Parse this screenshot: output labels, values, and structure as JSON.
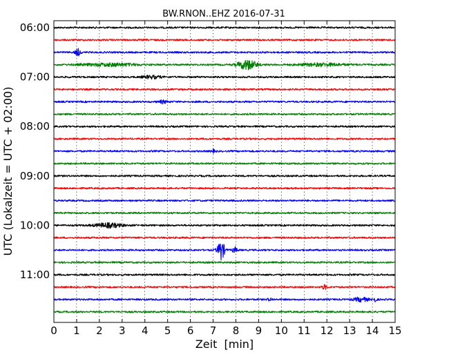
{
  "chart_data": {
    "type": "line",
    "title": "BW.RNON..EHZ 2016-07-31",
    "xlabel": "Zeit  [min]",
    "ylabel": "UTC (Lokalzeit = UTC + 02:00)",
    "xlim": [
      0,
      15
    ],
    "x_ticks": [
      "0",
      "1",
      "2",
      "3",
      "4",
      "5",
      "6",
      "7",
      "8",
      "9",
      "10",
      "11",
      "12",
      "13",
      "14",
      "15"
    ],
    "y_tick_labels": [
      "06:00",
      "07:00",
      "08:00",
      "09:00",
      "10:00",
      "11:00"
    ],
    "grid": true,
    "trace_colors": [
      "#000000",
      "#ff0000",
      "#0000ff",
      "#008000"
    ],
    "trace_start_times": [
      "06:00",
      "06:15",
      "06:30",
      "06:45",
      "07:00",
      "07:15",
      "07:30",
      "07:45",
      "08:00",
      "08:15",
      "08:30",
      "08:45",
      "09:00",
      "09:15",
      "09:30",
      "09:45",
      "10:00",
      "10:15",
      "10:30",
      "10:45",
      "11:00",
      "11:15",
      "11:30",
      "11:45"
    ],
    "events": [
      {
        "trace": 2,
        "minute": 1.05,
        "amplitude": 5,
        "width": 0.12
      },
      {
        "trace": 3,
        "minute": 8.5,
        "amplitude": 7,
        "width": 0.4
      },
      {
        "trace": 3,
        "minute": 2.5,
        "amplitude": 2,
        "width": 1.2
      },
      {
        "trace": 3,
        "minute": 11.8,
        "amplitude": 2,
        "width": 1.0
      },
      {
        "trace": 4,
        "minute": 4.3,
        "amplitude": 2,
        "width": 0.4
      },
      {
        "trace": 6,
        "minute": 4.8,
        "amplitude": 2,
        "width": 0.2
      },
      {
        "trace": 10,
        "minute": 7.0,
        "amplitude": 2,
        "width": 0.1
      },
      {
        "trace": 16,
        "minute": 2.4,
        "amplitude": 3,
        "width": 0.6
      },
      {
        "trace": 18,
        "minute": 7.35,
        "amplitude": 14,
        "width": 0.15
      },
      {
        "trace": 18,
        "minute": 7.95,
        "amplitude": 4,
        "width": 0.1
      },
      {
        "trace": 21,
        "minute": 11.9,
        "amplitude": 3,
        "width": 0.1
      },
      {
        "trace": 22,
        "minute": 13.5,
        "amplitude": 3,
        "width": 0.3
      },
      {
        "trace": 22,
        "minute": 14.1,
        "amplitude": 3,
        "width": 0.08
      },
      {
        "trace": 22,
        "minute": 9.5,
        "amplitude": 2,
        "width": 0.1
      }
    ]
  }
}
